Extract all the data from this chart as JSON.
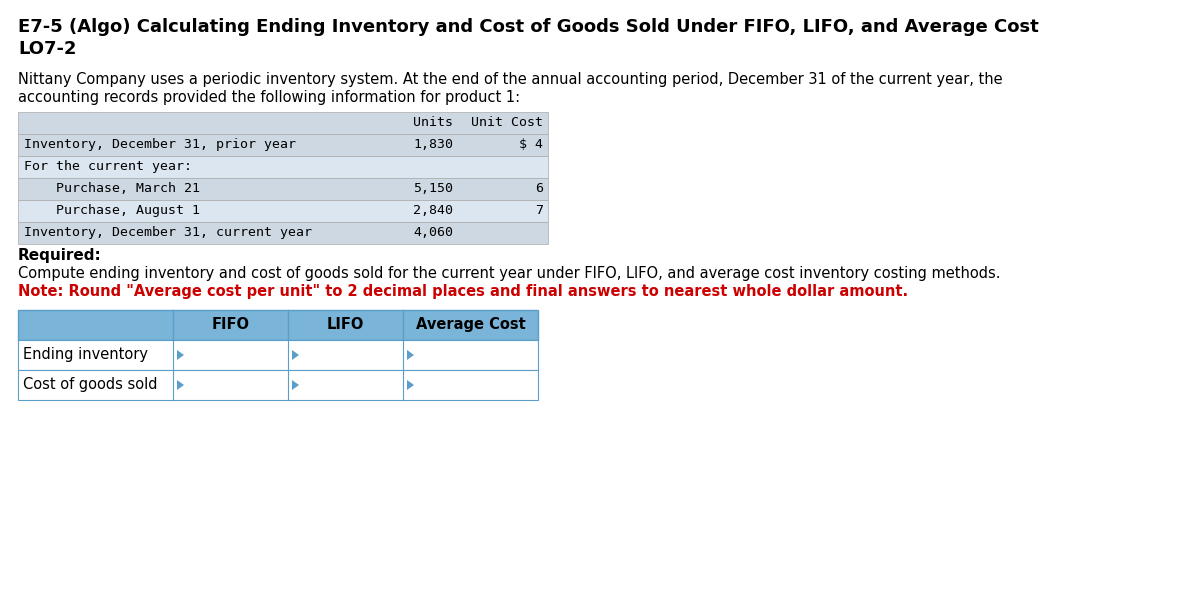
{
  "title_line1": "E7-5 (Algo) Calculating Ending Inventory and Cost of Goods Sold Under FIFO, LIFO, and Average Cost",
  "title_line2": "LO7-2",
  "paragraph_line1": "Nittany Company uses a periodic inventory system. At the end of the annual accounting period, December 31 of the current year, the",
  "paragraph_line2": "accounting records provided the following information for product 1:",
  "info_table": {
    "col_headers": [
      "",
      "Units",
      "Unit Cost"
    ],
    "rows": [
      [
        "Inventory, December 31, prior year",
        "1,830",
        "$ 4"
      ],
      [
        "For the current year:",
        "",
        ""
      ],
      [
        "    Purchase, March 21",
        "5,150",
        "6"
      ],
      [
        "    Purchase, August 1",
        "2,840",
        "7"
      ],
      [
        "Inventory, December 31, current year",
        "4,060",
        ""
      ]
    ],
    "row_colors": [
      "#cdd8e3",
      "#dce6f0",
      "#cdd8e3",
      "#dce6f0",
      "#cdd8e3"
    ],
    "header_bg": "#cdd8e3",
    "border_color": "#aaaaaa"
  },
  "required_label": "Required:",
  "required_text": "Compute ending inventory and cost of goods sold for the current year under FIFO, LIFO, and average cost inventory costing methods.",
  "note_text": "Note: Round \"Average cost per unit\" to 2 decimal places and final answers to nearest whole dollar amount.",
  "answer_table": {
    "col_headers": [
      "",
      "FIFO",
      "LIFO",
      "Average Cost"
    ],
    "rows": [
      [
        "Ending inventory",
        "",
        "",
        ""
      ],
      [
        "Cost of goods sold",
        "",
        "",
        ""
      ]
    ],
    "header_bg": "#7ab4d8",
    "border_color": "#5b9ec9"
  },
  "bg_color": "#ffffff",
  "text_color": "#000000",
  "note_color": "#cc0000"
}
